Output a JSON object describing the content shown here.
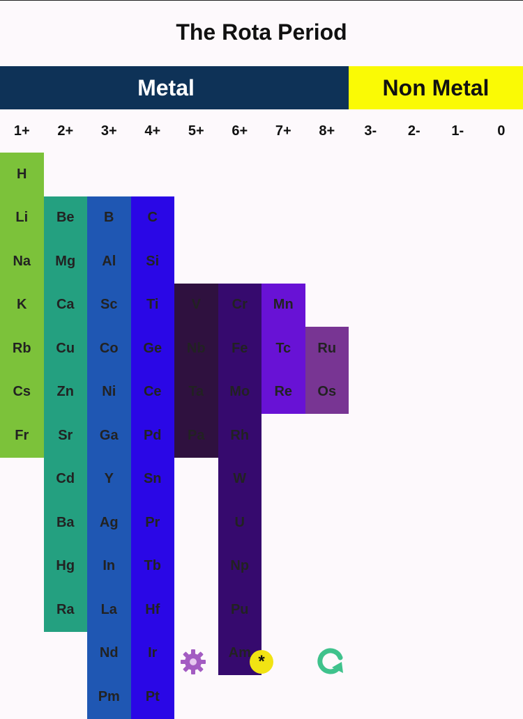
{
  "title": "The Rota Period",
  "banners": {
    "metal": "Metal",
    "non_metal": "Non Metal"
  },
  "charges": [
    "1+",
    "2+",
    "3+",
    "4+",
    "5+",
    "6+",
    "7+",
    "8+",
    "3-",
    "2-",
    "1-",
    "0"
  ],
  "columns": [
    {
      "start_row": 0,
      "elements": [
        "H",
        "Li",
        "Na",
        "K",
        "Rb",
        "Cs",
        "Fr"
      ]
    },
    {
      "start_row": 1,
      "elements": [
        "Be",
        "Mg",
        "Ca",
        "Cu",
        "Zn",
        "Sr",
        "Cd",
        "Ba",
        "Hg",
        "Ra"
      ]
    },
    {
      "start_row": 1,
      "elements": [
        "B",
        "Al",
        "Sc",
        "Co",
        "Ni",
        "Ga",
        "Y",
        "Ag",
        "In",
        "La",
        "Nd",
        "Pm"
      ]
    },
    {
      "start_row": 1,
      "elements": [
        "C",
        "Si",
        "Ti",
        "Ge",
        "Ce",
        "Pd",
        "Sn",
        "Pr",
        "Tb",
        "Hf",
        "Ir",
        "Pt"
      ]
    },
    {
      "start_row": 3,
      "elements": [
        "V",
        "Nb",
        "Ta",
        "Pa"
      ]
    },
    {
      "start_row": 3,
      "elements": [
        "Cr",
        "Fe",
        "Mo",
        "Rh",
        "W",
        "U",
        "Np",
        "Pu",
        "Am"
      ]
    },
    {
      "start_row": 3,
      "elements": [
        "Mn",
        "Tc",
        "Re"
      ]
    },
    {
      "start_row": 4,
      "elements": [
        "Ru",
        "Os"
      ]
    }
  ],
  "colors": {
    "metal_banner": "#0e3257",
    "non_metal_banner": "#fafa05",
    "columns": [
      "#7cc23a",
      "#24a080",
      "#1f57b3",
      "#2a07e6",
      "#2f113f",
      "#360a6e",
      "#6812d5",
      "#783593"
    ]
  },
  "bottom_icons": {
    "gear": "gear-icon",
    "star": "*",
    "reload": "reload-icon"
  }
}
